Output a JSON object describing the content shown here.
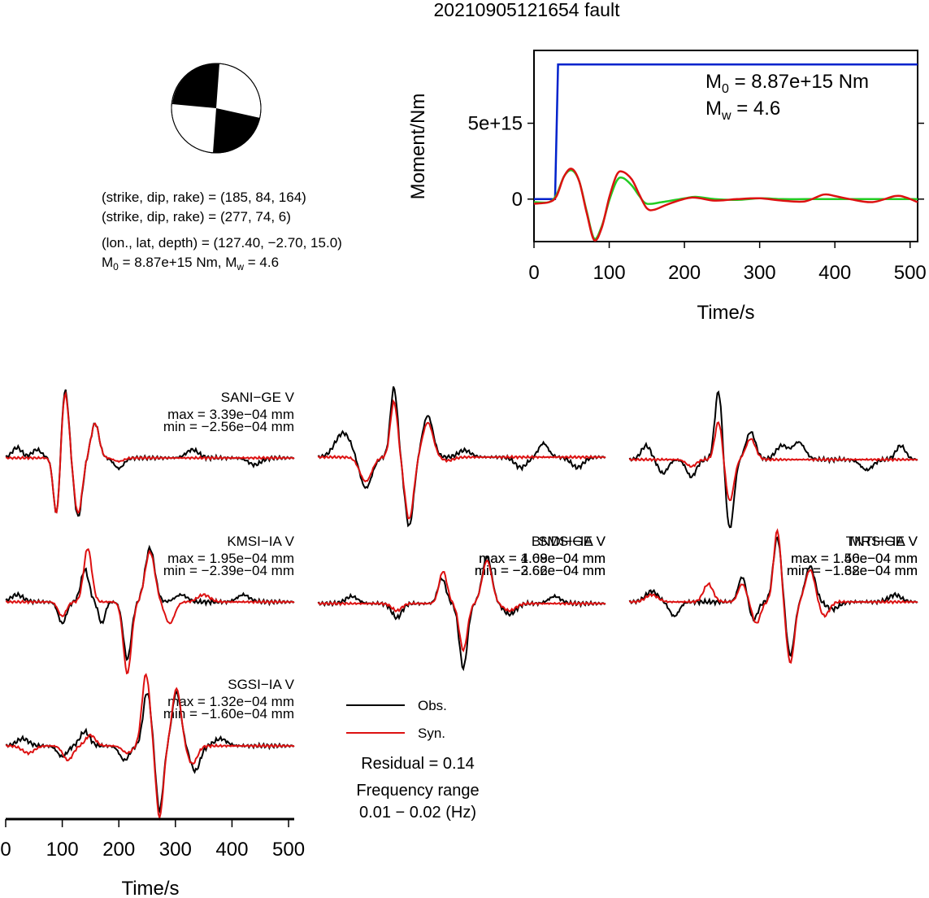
{
  "title": "20210905121654 fault",
  "mechanism": {
    "line1": "(strike, dip, rake) = (185, 84, 164)",
    "line2": "(strike, dip, rake) = (277, 74, 6)",
    "line3": "(lon., lat, depth) = (127.40, −2.70, 15.0)",
    "m0_prefix": "M",
    "m0_sub": "0",
    "m0_mid": " = 8.87e+15 Nm, M",
    "mw_sub": "w",
    "mw_suffix": " = 4.6"
  },
  "moment_chart": {
    "ylabel": "Moment/Nm",
    "xlabel": "Time/s",
    "m0_label_main": "M",
    "m0_label_sub": "0",
    "m0_label_rest": " = 8.87e+15 Nm",
    "mw_label_main": "M",
    "mw_label_sub": "w",
    "mw_label_rest": " = 4.6"
  },
  "waveform_axis": {
    "xlabel": "Time/s"
  },
  "legend": {
    "obs": "Obs.",
    "syn": "Syn.",
    "residual": "Residual = 0.14",
    "freq_title": "Frequency range",
    "freq_value": "0.01 − 0.02 (Hz)"
  },
  "colors": {
    "observed": "#000000",
    "synthetic": "#dd1111",
    "moment": "#0022cc",
    "moment_rate": "#22cc22",
    "beachball_fill": "#000000"
  },
  "chart_data": [
    {
      "type": "line",
      "name": "moment-function",
      "xlabel": "Time/s",
      "ylabel": "Moment/Nm",
      "xlim": [
        0,
        510
      ],
      "ylim": [
        -2800000000000000.0,
        9800000000000000.0
      ],
      "xticks": [
        0,
        100,
        200,
        300,
        400,
        500
      ],
      "xtick_labels": [
        "0",
        "100",
        "200",
        "300",
        "400",
        "500"
      ],
      "yticks": [
        0,
        5000000000000000.0
      ],
      "ytick_labels": [
        "0",
        "5e+15"
      ],
      "grid": false,
      "series": [
        {
          "color": "#0022cc",
          "x": [
            0,
            28,
            32,
            510
          ],
          "y": [
            0,
            0,
            8870000000000000.0,
            8870000000000000.0
          ]
        },
        {
          "color": "#22cc22",
          "x": [
            0,
            20,
            30,
            40,
            50,
            60,
            70,
            80,
            90,
            100,
            110,
            118,
            130,
            140,
            150,
            170,
            200,
            215,
            240,
            270,
            300,
            330,
            360,
            390,
            420,
            450,
            480,
            510
          ],
          "y": [
            -200000000000000.0,
            -200000000000000.0,
            300000000000000.0,
            1500000000000000.0,
            1900000000000000.0,
            1200000000000000.0,
            -800000000000000.0,
            -2600000000000000.0,
            -1800000000000000.0,
            -100000000000000.0,
            1200000000000000.0,
            1400000000000000.0,
            900000000000000.0,
            200000000000000.0,
            -300000000000000.0,
            -200000000000000.0,
            50000000000000.0,
            150000000000000.0,
            0.0,
            -50000000000000.0,
            50000000000000.0,
            0.0,
            0.0,
            0.0,
            0.0,
            0.0,
            0.0,
            0.0
          ]
        },
        {
          "color": "#dd1111",
          "x": [
            0,
            20,
            30,
            40,
            50,
            60,
            70,
            80,
            90,
            100,
            110,
            118,
            130,
            140,
            150,
            160,
            180,
            210,
            240,
            270,
            300,
            330,
            360,
            385,
            400,
            420,
            450,
            480,
            495,
            510
          ],
          "y": [
            -300000000000000.0,
            -200000000000000.0,
            200000000000000.0,
            1500000000000000.0,
            2000000000000000.0,
            1200000000000000.0,
            -900000000000000.0,
            -2700000000000000.0,
            -1900000000000000.0,
            100000000000000.0,
            1600000000000000.0,
            1800000000000000.0,
            1300000000000000.0,
            300000000000000.0,
            -600000000000000.0,
            -700000000000000.0,
            -300000000000000.0,
            100000000000000.0,
            -100000000000000.0,
            0.0,
            50000000000000.0,
            -100000000000000.0,
            -150000000000000.0,
            300000000000000.0,
            200000000000000.0,
            0.0,
            -200000000000000.0,
            200000000000000.0,
            100000000000000.0,
            -200000000000000.0
          ]
        }
      ]
    },
    {
      "type": "line",
      "name": "waveform-fits",
      "xlabel": "Time/s",
      "xlim": [
        0,
        510
      ],
      "xticks": [
        0,
        100,
        200,
        300,
        400,
        500
      ],
      "xtick_labels": [
        "0",
        "100",
        "200",
        "300",
        "400",
        "500"
      ],
      "stations": [
        {
          "name": "SANI−GE V",
          "max": "max = 3.39e−04 mm",
          "min": "min = −2.56e−04 mm",
          "obs": [
            {
              "t": 90,
              "a": -0.85,
              "w": 8
            },
            {
              "t": 105,
              "a": 1.0,
              "w": 9
            },
            {
              "t": 128,
              "a": -0.85,
              "w": 10
            },
            {
              "t": 158,
              "a": 0.5,
              "w": 10
            },
            {
              "t": 20,
              "a": 0.15,
              "w": 12
            },
            {
              "t": 55,
              "a": 0.12,
              "w": 12
            },
            {
              "t": 200,
              "a": -0.15,
              "w": 12
            },
            {
              "t": 330,
              "a": 0.12,
              "w": 15
            },
            {
              "t": 440,
              "a": -0.1,
              "w": 15
            }
          ],
          "syn": [
            {
              "t": 90,
              "a": -0.85,
              "w": 8
            },
            {
              "t": 105,
              "a": 0.95,
              "w": 9
            },
            {
              "t": 128,
              "a": -0.8,
              "w": 10
            },
            {
              "t": 158,
              "a": 0.5,
              "w": 10
            },
            {
              "t": 200,
              "a": -0.05,
              "w": 12
            }
          ]
        },
        {
          "name": "BNDI−GE V",
          "max": "max = 4.09e−04 mm",
          "min": "min = −3.62e−04 mm",
          "obs": [
            {
              "t": 45,
              "a": 0.35,
              "w": 20
            },
            {
              "t": 85,
              "a": -0.45,
              "w": 15
            },
            {
              "t": 135,
              "a": 1.0,
              "w": 9
            },
            {
              "t": 162,
              "a": -1.0,
              "w": 11
            },
            {
              "t": 195,
              "a": 0.6,
              "w": 13
            },
            {
              "t": 260,
              "a": 0.1,
              "w": 15
            },
            {
              "t": 360,
              "a": -0.15,
              "w": 15
            },
            {
              "t": 400,
              "a": 0.2,
              "w": 12
            },
            {
              "t": 460,
              "a": -0.15,
              "w": 15
            }
          ],
          "syn": [
            {
              "t": 85,
              "a": -0.35,
              "w": 15
            },
            {
              "t": 135,
              "a": 0.8,
              "w": 9
            },
            {
              "t": 162,
              "a": -0.9,
              "w": 11
            },
            {
              "t": 195,
              "a": 0.5,
              "w": 13
            },
            {
              "t": 230,
              "a": -0.05,
              "w": 15
            }
          ]
        },
        {
          "name": "TNTI−GE V",
          "max": "max = 1.50e−04 mm",
          "min": "min = −1.32e−04 mm",
          "obs": [
            {
              "t": 30,
              "a": 0.2,
              "w": 12
            },
            {
              "t": 60,
              "a": -0.2,
              "w": 12
            },
            {
              "t": 110,
              "a": -0.25,
              "w": 12
            },
            {
              "t": 158,
              "a": 1.0,
              "w": 9
            },
            {
              "t": 178,
              "a": -1.0,
              "w": 10
            },
            {
              "t": 215,
              "a": 0.4,
              "w": 12
            },
            {
              "t": 270,
              "a": 0.2,
              "w": 15
            },
            {
              "t": 300,
              "a": 0.25,
              "w": 15
            },
            {
              "t": 420,
              "a": -0.15,
              "w": 15
            },
            {
              "t": 480,
              "a": 0.2,
              "w": 12
            }
          ],
          "syn": [
            {
              "t": 110,
              "a": -0.1,
              "w": 12
            },
            {
              "t": 158,
              "a": 0.55,
              "w": 9
            },
            {
              "t": 178,
              "a": -0.6,
              "w": 10
            },
            {
              "t": 215,
              "a": 0.3,
              "w": 12
            }
          ]
        },
        {
          "name": "KMSI−IA V",
          "max": "max = 1.95e−04 mm",
          "min": "min = −2.39e−04 mm",
          "obs": [
            {
              "t": 20,
              "a": 0.1,
              "w": 15
            },
            {
              "t": 100,
              "a": -0.3,
              "w": 10
            },
            {
              "t": 140,
              "a": 0.45,
              "w": 10
            },
            {
              "t": 170,
              "a": -0.3,
              "w": 8
            },
            {
              "t": 215,
              "a": -0.8,
              "w": 10
            },
            {
              "t": 255,
              "a": 0.75,
              "w": 12
            },
            {
              "t": 310,
              "a": 0.1,
              "w": 15
            },
            {
              "t": 420,
              "a": 0.1,
              "w": 15
            }
          ],
          "syn": [
            {
              "t": 100,
              "a": -0.2,
              "w": 10
            },
            {
              "t": 145,
              "a": 0.75,
              "w": 10
            },
            {
              "t": 215,
              "a": -1.0,
              "w": 10
            },
            {
              "t": 255,
              "a": 0.7,
              "w": 12
            },
            {
              "t": 290,
              "a": -0.3,
              "w": 12
            },
            {
              "t": 350,
              "a": 0.1,
              "w": 15
            }
          ]
        },
        {
          "name": "SMSI−IA V",
          "max": "max = 1.68e−04 mm",
          "min": "min = −2.66e−04 mm",
          "obs": [
            {
              "t": 60,
              "a": 0.1,
              "w": 15
            },
            {
              "t": 140,
              "a": -0.2,
              "w": 12
            },
            {
              "t": 220,
              "a": 0.35,
              "w": 10
            },
            {
              "t": 258,
              "a": -0.9,
              "w": 10
            },
            {
              "t": 300,
              "a": 0.65,
              "w": 12
            },
            {
              "t": 340,
              "a": -0.15,
              "w": 15
            },
            {
              "t": 420,
              "a": 0.1,
              "w": 15
            }
          ],
          "syn": [
            {
              "t": 140,
              "a": -0.1,
              "w": 12
            },
            {
              "t": 222,
              "a": 0.45,
              "w": 10
            },
            {
              "t": 258,
              "a": -0.65,
              "w": 10
            },
            {
              "t": 300,
              "a": 0.6,
              "w": 12
            },
            {
              "t": 340,
              "a": -0.1,
              "w": 15
            }
          ]
        },
        {
          "name": "MRSI−IA V",
          "max": "max = 1.46e−04 mm",
          "min": "min = −1.68e−04 mm",
          "obs": [
            {
              "t": 40,
              "a": 0.15,
              "w": 15
            },
            {
              "t": 80,
              "a": -0.2,
              "w": 12
            },
            {
              "t": 200,
              "a": 0.35,
              "w": 10
            },
            {
              "t": 220,
              "a": -0.25,
              "w": 10
            },
            {
              "t": 262,
              "a": 0.9,
              "w": 10
            },
            {
              "t": 285,
              "a": -0.75,
              "w": 10
            },
            {
              "t": 320,
              "a": 0.5,
              "w": 12
            },
            {
              "t": 360,
              "a": -0.1,
              "w": 15
            },
            {
              "t": 470,
              "a": 0.1,
              "w": 15
            }
          ],
          "syn": [
            {
              "t": 40,
              "a": 0.1,
              "w": 15
            },
            {
              "t": 140,
              "a": 0.25,
              "w": 12
            },
            {
              "t": 200,
              "a": 0.25,
              "w": 10
            },
            {
              "t": 225,
              "a": -0.3,
              "w": 10
            },
            {
              "t": 262,
              "a": 1.0,
              "w": 9
            },
            {
              "t": 285,
              "a": -0.85,
              "w": 10
            },
            {
              "t": 320,
              "a": 0.45,
              "w": 12
            },
            {
              "t": 345,
              "a": -0.2,
              "w": 12
            }
          ]
        },
        {
          "name": "SGSI−IA V",
          "max": "max = 1.32e−04 mm",
          "min": "min = −1.60e−04 mm",
          "obs": [
            {
              "t": 30,
              "a": 0.1,
              "w": 15
            },
            {
              "t": 100,
              "a": -0.15,
              "w": 12
            },
            {
              "t": 140,
              "a": 0.2,
              "w": 12
            },
            {
              "t": 210,
              "a": -0.2,
              "w": 12
            },
            {
              "t": 250,
              "a": 0.75,
              "w": 10
            },
            {
              "t": 272,
              "a": -0.9,
              "w": 9
            },
            {
              "t": 302,
              "a": 0.75,
              "w": 11
            },
            {
              "t": 335,
              "a": -0.35,
              "w": 12
            },
            {
              "t": 380,
              "a": 0.1,
              "w": 15
            }
          ],
          "syn": [
            {
              "t": 40,
              "a": -0.1,
              "w": 15
            },
            {
              "t": 110,
              "a": -0.2,
              "w": 12
            },
            {
              "t": 150,
              "a": 0.15,
              "w": 12
            },
            {
              "t": 215,
              "a": -0.1,
              "w": 12
            },
            {
              "t": 248,
              "a": 1.0,
              "w": 10
            },
            {
              "t": 272,
              "a": -1.0,
              "w": 9
            },
            {
              "t": 302,
              "a": 0.8,
              "w": 11
            },
            {
              "t": 330,
              "a": -0.25,
              "w": 12
            }
          ]
        }
      ]
    }
  ]
}
